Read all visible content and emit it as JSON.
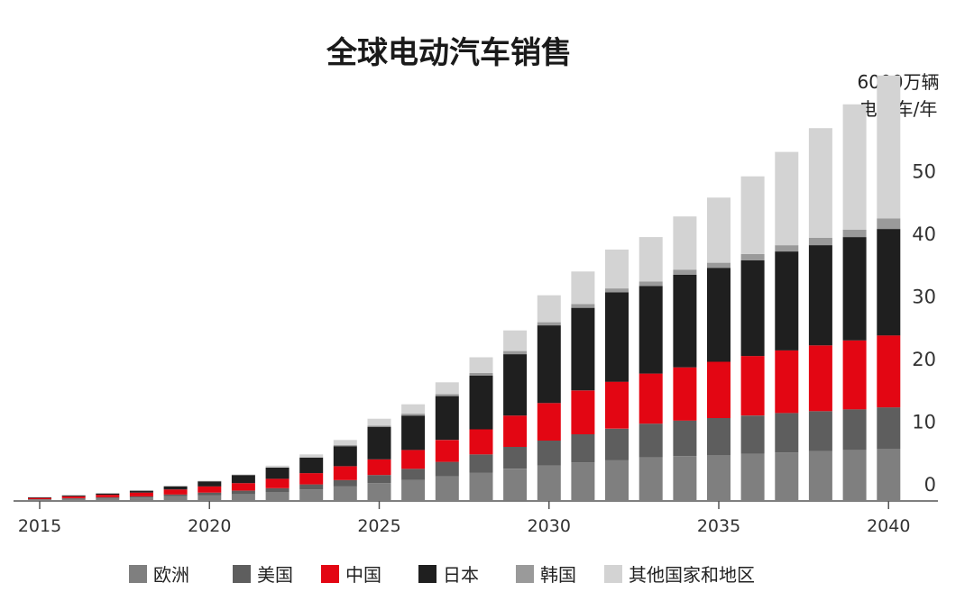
{
  "chart_data": {
    "type": "bar",
    "stacked": true,
    "title": "全球电动汽车销售",
    "unit_line1": "6000万辆",
    "unit_line2": "电动车/年",
    "x": [
      2015,
      2016,
      2017,
      2018,
      2019,
      2020,
      2021,
      2022,
      2023,
      2024,
      2025,
      2026,
      2027,
      2028,
      2029,
      2030,
      2031,
      2032,
      2033,
      2034,
      2035,
      2036,
      2037,
      2038,
      2039,
      2040
    ],
    "x_tick_labels": [
      "2015",
      "2020",
      "2025",
      "2030",
      "2035",
      "2040"
    ],
    "y_ticks": [
      0,
      10,
      20,
      30,
      40,
      50
    ],
    "ylim": [
      0,
      60
    ],
    "grid": false,
    "legend_position": "bottom",
    "colors": {
      "欧洲": "#7f7f7f",
      "美国": "#5e5e5e",
      "中国": "#e30613",
      "日本": "#1f1f1f",
      "韩国": "#9a9a9a",
      "其他国家和地区": "#d3d3d3"
    },
    "series": [
      {
        "name": "欧洲",
        "values": [
          0.1,
          0.2,
          0.3,
          0.4,
          0.6,
          0.8,
          1.0,
          1.3,
          1.7,
          2.2,
          2.7,
          3.2,
          3.8,
          4.4,
          5.0,
          5.5,
          6.0,
          6.4,
          6.8,
          7.0,
          7.2,
          7.4,
          7.6,
          7.8,
          8.0,
          8.2
        ]
      },
      {
        "name": "美国",
        "values": [
          0.05,
          0.1,
          0.15,
          0.2,
          0.3,
          0.4,
          0.5,
          0.6,
          0.8,
          1.0,
          1.3,
          1.8,
          2.3,
          2.9,
          3.5,
          4.0,
          4.5,
          5.0,
          5.4,
          5.7,
          5.9,
          6.1,
          6.3,
          6.4,
          6.5,
          6.6
        ]
      },
      {
        "name": "中国",
        "values": [
          0.2,
          0.3,
          0.4,
          0.6,
          0.8,
          1.0,
          1.2,
          1.5,
          1.8,
          2.2,
          2.5,
          3.0,
          3.5,
          4.0,
          5.0,
          6.0,
          7.0,
          7.5,
          8.0,
          8.5,
          9.0,
          9.5,
          10.0,
          10.5,
          11.0,
          11.5
        ]
      },
      {
        "name": "日本",
        "values": [
          0.1,
          0.15,
          0.2,
          0.3,
          0.5,
          0.8,
          1.3,
          1.8,
          2.5,
          3.2,
          5.2,
          5.5,
          7.0,
          8.6,
          9.8,
          12.4,
          13.2,
          14.3,
          14.0,
          14.8,
          15.0,
          15.3,
          15.8,
          16.0,
          16.5,
          17.0
        ]
      },
      {
        "name": "韩国",
        "values": [
          0,
          0,
          0,
          0,
          0,
          0,
          0,
          0,
          0,
          0.2,
          0.2,
          0.3,
          0.3,
          0.4,
          0.5,
          0.5,
          0.6,
          0.6,
          0.7,
          0.8,
          0.8,
          1.0,
          1.0,
          1.2,
          1.2,
          1.7
        ]
      },
      {
        "name": "其他国家和地区",
        "values": [
          0,
          0,
          0,
          0,
          0,
          0,
          0,
          0.1,
          0.2,
          0.3,
          0.4,
          0.5,
          0.6,
          0.7,
          0.8,
          1.0,
          1.2,
          1.4,
          1.6,
          2.0,
          2.4,
          2.9,
          3.4,
          4.0,
          4.5,
          5.0
        ]
      }
    ],
    "extra_series": [
      {
        "name": "其他国家和地区",
        "values": [
          0,
          0,
          0,
          0,
          0,
          0.1,
          0.1,
          0.2,
          0.3,
          0.5,
          0.7,
          1.0,
          1.3,
          1.8,
          2.5,
          3.3,
          4.0,
          4.8,
          5.5,
          6.5,
          8.0,
          9.5,
          11.5,
          13.5,
          15.5,
          17.8
        ]
      }
    ]
  }
}
